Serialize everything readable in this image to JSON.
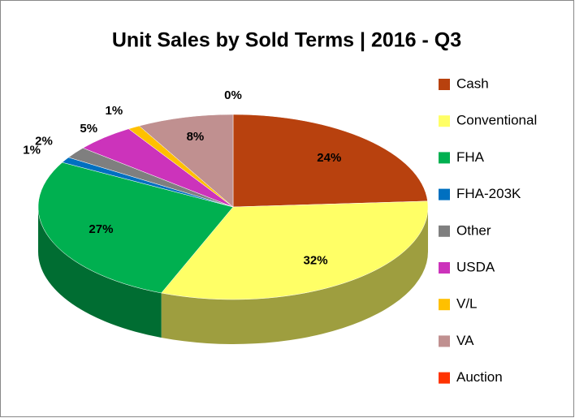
{
  "chart_data": {
    "type": "pie",
    "title": "Unit Sales by Sold Terms | 2016 - Q3",
    "categories": [
      "Cash",
      "Conventional",
      "FHA",
      "FHA-203K",
      "Other",
      "USDA",
      "V/L",
      "VA",
      "Auction"
    ],
    "values": [
      24,
      32,
      27,
      1,
      2,
      5,
      1,
      8,
      0
    ],
    "value_labels": [
      "24%",
      "32%",
      "27%",
      "1%",
      "2%",
      "5%",
      "1%",
      "8%",
      "0%"
    ],
    "colors": [
      "#b8410e",
      "#ffff66",
      "#00b050",
      "#0070c0",
      "#7f7f7f",
      "#cc33bb",
      "#ffc000",
      "#c09090",
      "#ff3300"
    ],
    "legend": "right"
  }
}
